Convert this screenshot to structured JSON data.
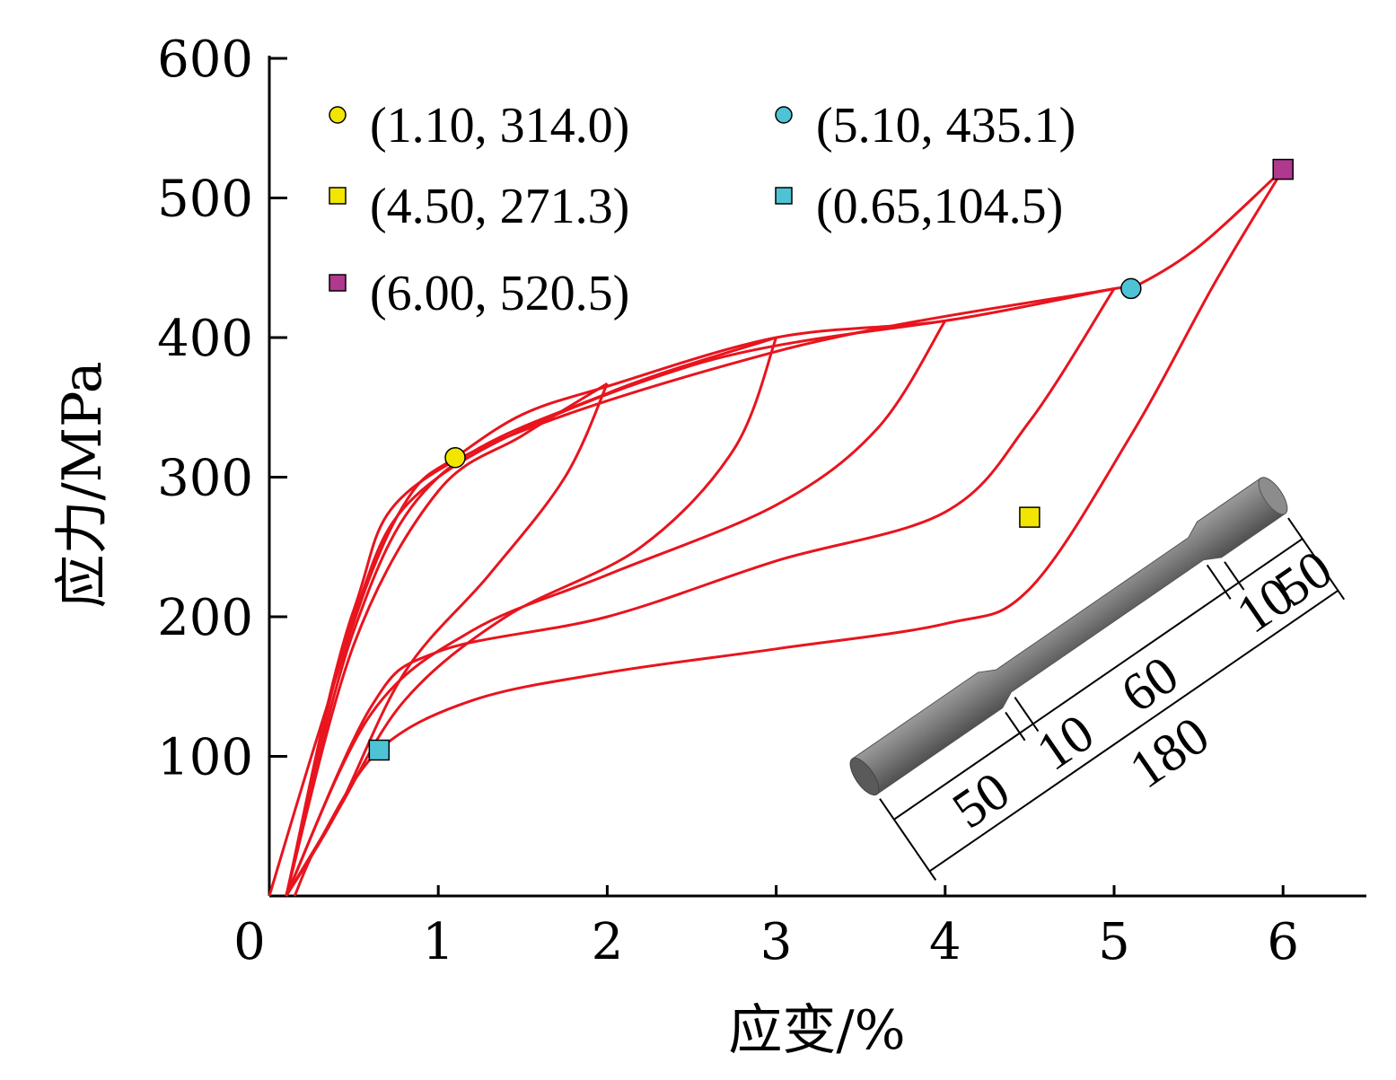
{
  "chart_data": {
    "type": "line",
    "title": "",
    "xlabel": "应变/%",
    "ylabel": "应力/MPa",
    "xlim": [
      0,
      6.5
    ],
    "ylim": [
      0,
      600
    ],
    "x_ticks": [
      "0",
      "1",
      "2",
      "3",
      "4",
      "5",
      "6"
    ],
    "y_ticks": [
      "100",
      "200",
      "300",
      "400",
      "500",
      "600"
    ],
    "grid": false,
    "legend_position": "top-left",
    "line_color": "#e8141e",
    "loading_envelope": [
      [
        0.0,
        0
      ],
      [
        0.3,
        120
      ],
      [
        0.6,
        230
      ],
      [
        0.85,
        290
      ],
      [
        1.1,
        314
      ],
      [
        1.5,
        345
      ],
      [
        2.0,
        365
      ],
      [
        3.0,
        400
      ],
      [
        4.0,
        412
      ],
      [
        5.0,
        435
      ],
      [
        5.1,
        435.1
      ],
      [
        5.5,
        465
      ],
      [
        6.0,
        520.5
      ]
    ],
    "cycles": [
      {
        "peak": [
          2.0,
          367
        ],
        "unloading": [
          [
            2.0,
            367
          ],
          [
            1.75,
            300
          ],
          [
            1.3,
            230
          ],
          [
            0.8,
            160
          ],
          [
            0.4,
            60
          ],
          [
            0.1,
            0
          ]
        ],
        "reloading": [
          [
            0.1,
            0
          ],
          [
            0.5,
            180
          ],
          [
            1.0,
            290
          ],
          [
            1.5,
            330
          ],
          [
            2.0,
            367
          ]
        ]
      },
      {
        "peak": [
          3.0,
          400
        ],
        "unloading": [
          [
            3.0,
            400
          ],
          [
            2.75,
            320
          ],
          [
            2.2,
            250
          ],
          [
            1.4,
            200
          ],
          [
            0.8,
            140
          ],
          [
            0.4,
            60
          ],
          [
            0.1,
            0
          ]
        ],
        "reloading": [
          [
            0.1,
            0
          ],
          [
            0.5,
            190
          ],
          [
            1.0,
            300
          ],
          [
            2.0,
            360
          ],
          [
            3.0,
            400
          ]
        ]
      },
      {
        "peak": [
          4.0,
          412
        ],
        "unloading": [
          [
            4.0,
            412
          ],
          [
            3.6,
            335
          ],
          [
            3.0,
            280
          ],
          [
            2.0,
            230
          ],
          [
            1.2,
            190
          ],
          [
            0.6,
            130
          ],
          [
            0.1,
            0
          ]
        ],
        "reloading": [
          [
            0.1,
            0
          ],
          [
            0.5,
            200
          ],
          [
            1.0,
            300
          ],
          [
            2.5,
            380
          ],
          [
            4.0,
            412
          ]
        ]
      },
      {
        "peak": [
          5.0,
          435
        ],
        "unloading": [
          [
            5.0,
            435
          ],
          [
            4.5,
            340
          ],
          [
            4.0,
            275
          ],
          [
            3.0,
            240
          ],
          [
            2.0,
            200
          ],
          [
            1.0,
            175
          ],
          [
            0.6,
            135
          ],
          [
            0.1,
            0
          ]
        ],
        "reloading": [
          [
            0.1,
            0
          ],
          [
            0.5,
            205
          ],
          [
            1.0,
            305
          ],
          [
            3.0,
            390
          ],
          [
            5.0,
            435
          ]
        ]
      },
      {
        "peak": [
          6.0,
          520.5
        ],
        "unloading": [
          [
            6.0,
            520.5
          ],
          [
            5.6,
            440
          ],
          [
            5.1,
            330
          ],
          [
            4.5,
            220
          ],
          [
            4.0,
            195
          ],
          [
            3.0,
            177
          ],
          [
            2.0,
            160
          ],
          [
            1.2,
            140
          ],
          [
            0.65,
            104.5
          ],
          [
            0.3,
            40
          ],
          [
            0.15,
            0
          ]
        ],
        "reloading": []
      }
    ],
    "markers": [
      {
        "label": "(1.10, 314.0)",
        "x": 1.1,
        "y": 314.0,
        "shape": "circle",
        "color": "#f2e600"
      },
      {
        "label": "(5.10, 435.1)",
        "x": 5.1,
        "y": 435.1,
        "shape": "circle",
        "color": "#4fc3d6"
      },
      {
        "label": "(4.50, 271.3)",
        "x": 4.5,
        "y": 271.3,
        "shape": "square",
        "color": "#f2e600"
      },
      {
        "label": "(0.65,104.5)",
        "x": 0.65,
        "y": 104.5,
        "shape": "square",
        "color": "#4fc3d6"
      },
      {
        "label": "(6.00, 520.5)",
        "x": 6.0,
        "y": 520.5,
        "shape": "square",
        "color": "#b0388f"
      }
    ]
  },
  "specimen": {
    "dimension_labels": [
      "50",
      "10",
      "60",
      "10",
      "50",
      "180"
    ],
    "color": "#707070"
  }
}
